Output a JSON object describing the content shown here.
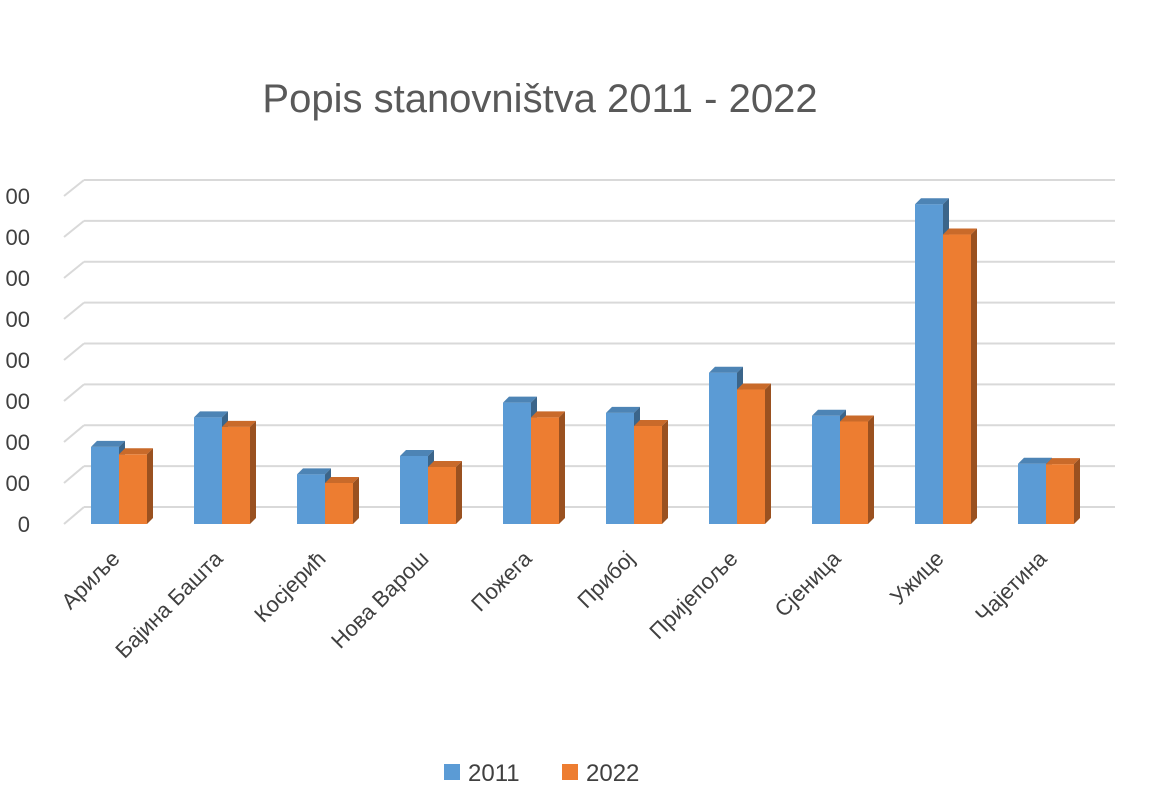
{
  "chart_data": {
    "type": "bar",
    "title": "Popis stanovništva 2011 - 2022",
    "categories": [
      "Ариље",
      "Бајина Башта",
      "Косјерић",
      "Нова Варош",
      "Пожега",
      "Прибој",
      "Пријепоље",
      "Сјеница",
      "Ужице",
      "Чајетина"
    ],
    "series": [
      {
        "name": "2011",
        "color": "#5B9BD5",
        "values": [
          18800,
          26000,
          12100,
          16600,
          29600,
          27100,
          36900,
          26400,
          78000,
          14700
        ]
      },
      {
        "name": "2022",
        "color": "#ED7D31",
        "values": [
          17000,
          23700,
          10000,
          13900,
          26000,
          23900,
          32800,
          25000,
          70600,
          14600
        ]
      }
    ],
    "y_ticks": [
      "00",
      "00",
      "00",
      "00",
      "00",
      "00",
      "00",
      "00",
      "0"
    ],
    "ylim": [
      0,
      80000
    ],
    "grid": true,
    "legend_position": "bottom"
  }
}
